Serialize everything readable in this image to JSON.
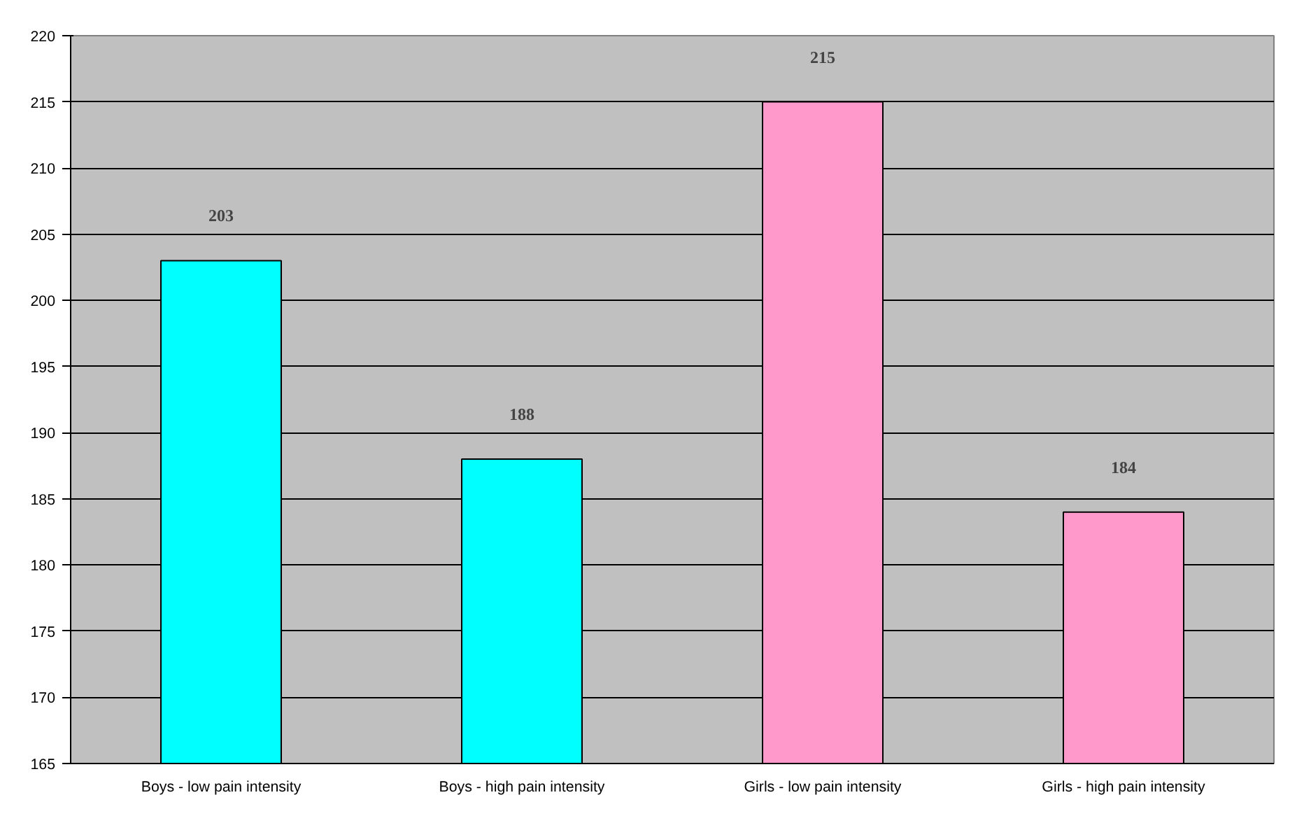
{
  "chart_data": {
    "type": "bar",
    "categories": [
      "Boys - low pain intensity",
      "Boys - high pain intensity",
      "Girls - low pain intensity",
      "Girls - high pain intensity"
    ],
    "values": [
      203,
      188,
      215,
      184
    ],
    "colors": [
      "#00ffff",
      "#00ffff",
      "#ff99cc",
      "#ff99cc"
    ],
    "ylim": [
      165,
      220
    ],
    "yticks": [
      165,
      170,
      175,
      180,
      185,
      190,
      195,
      200,
      205,
      210,
      215,
      220
    ],
    "grid": "y",
    "data_labels": true
  }
}
